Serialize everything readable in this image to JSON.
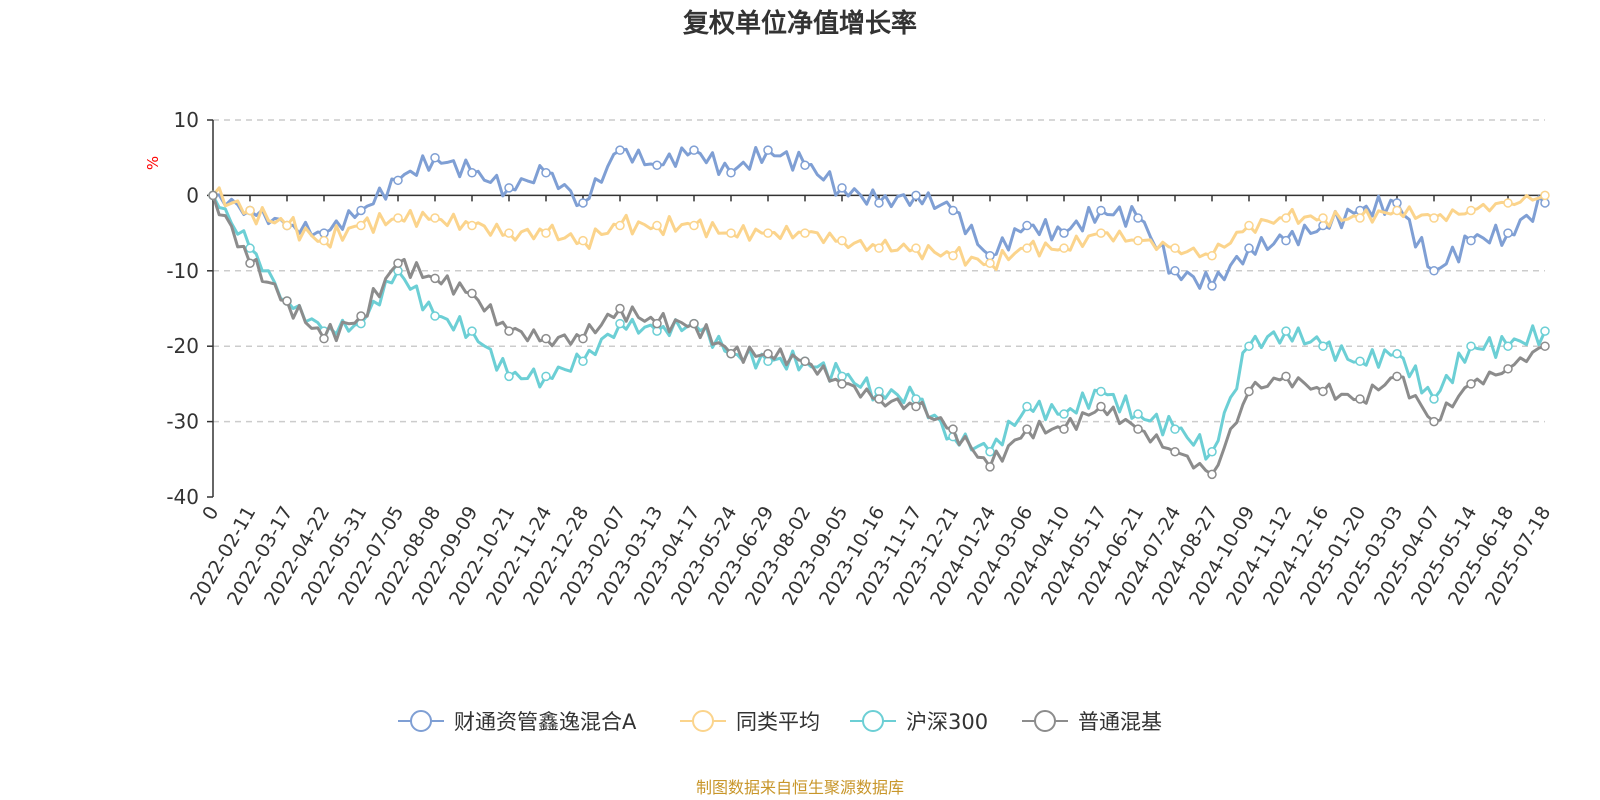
{
  "chart_data": {
    "type": "line",
    "title": "复权单位净值增长率",
    "ylabel": "%",
    "ylim": [
      -40,
      10
    ],
    "yticks": [
      10,
      0,
      -10,
      -20,
      -30,
      -40
    ],
    "categories": [
      "0",
      "2022-02-11",
      "2022-03-17",
      "2022-04-22",
      "2022-05-31",
      "2022-07-05",
      "2022-08-08",
      "2022-09-09",
      "2022-10-21",
      "2022-11-24",
      "2022-12-28",
      "2023-02-07",
      "2023-03-13",
      "2023-04-17",
      "2023-05-24",
      "2023-06-29",
      "2023-08-02",
      "2023-09-05",
      "2023-10-16",
      "2023-11-17",
      "2023-12-21",
      "2024-01-24",
      "2024-03-06",
      "2024-04-10",
      "2024-05-17",
      "2024-06-21",
      "2024-07-24",
      "2024-08-27",
      "2024-10-09",
      "2024-11-12",
      "2024-12-16",
      "2025-01-20",
      "2025-03-03",
      "2025-04-07",
      "2025-05-14",
      "2025-06-18",
      "2025-07-18"
    ],
    "grid": "horizontal dashed",
    "legend_position": "bottom",
    "series": [
      {
        "name": "财通资管鑫逸混合A",
        "color": "#7f9fd4",
        "values": [
          0,
          -2,
          -4,
          -5,
          -2,
          2,
          5,
          3,
          1,
          3,
          -1,
          6,
          4,
          6,
          3,
          6,
          4,
          1,
          -1,
          0,
          -2,
          -8,
          -4,
          -5,
          -2,
          -3,
          -10,
          -12,
          -7,
          -6,
          -4,
          -2,
          -1,
          -10,
          -6,
          -5,
          -1
        ]
      },
      {
        "name": "同类平均",
        "color": "#fbd48c",
        "values": [
          0,
          -2,
          -4,
          -6,
          -4,
          -3,
          -3,
          -4,
          -5,
          -5,
          -6,
          -4,
          -4,
          -4,
          -5,
          -5,
          -5,
          -6,
          -7,
          -7,
          -8,
          -9,
          -7,
          -7,
          -5,
          -6,
          -7,
          -8,
          -4,
          -3,
          -3,
          -3,
          -2,
          -3,
          -2,
          -1,
          0
        ]
      },
      {
        "name": "沪深300",
        "color": "#6ccfd5",
        "values": [
          0,
          -7,
          -14,
          -18,
          -17,
          -10,
          -16,
          -18,
          -24,
          -24,
          -22,
          -17,
          -18,
          -17,
          -21,
          -22,
          -22,
          -24,
          -26,
          -27,
          -32,
          -34,
          -28,
          -29,
          -26,
          -29,
          -31,
          -34,
          -20,
          -18,
          -20,
          -22,
          -21,
          -27,
          -20,
          -20,
          -18
        ]
      },
      {
        "name": "普通混基",
        "color": "#8c8c8c",
        "values": [
          0,
          -9,
          -14,
          -19,
          -16,
          -9,
          -11,
          -13,
          -18,
          -19,
          -19,
          -15,
          -17,
          -17,
          -21,
          -21,
          -22,
          -25,
          -27,
          -28,
          -31,
          -36,
          -31,
          -31,
          -28,
          -31,
          -34,
          -37,
          -26,
          -24,
          -26,
          -27,
          -24,
          -30,
          -25,
          -23,
          -20
        ]
      }
    ],
    "source": "制图数据来自恒生聚源数据库"
  }
}
